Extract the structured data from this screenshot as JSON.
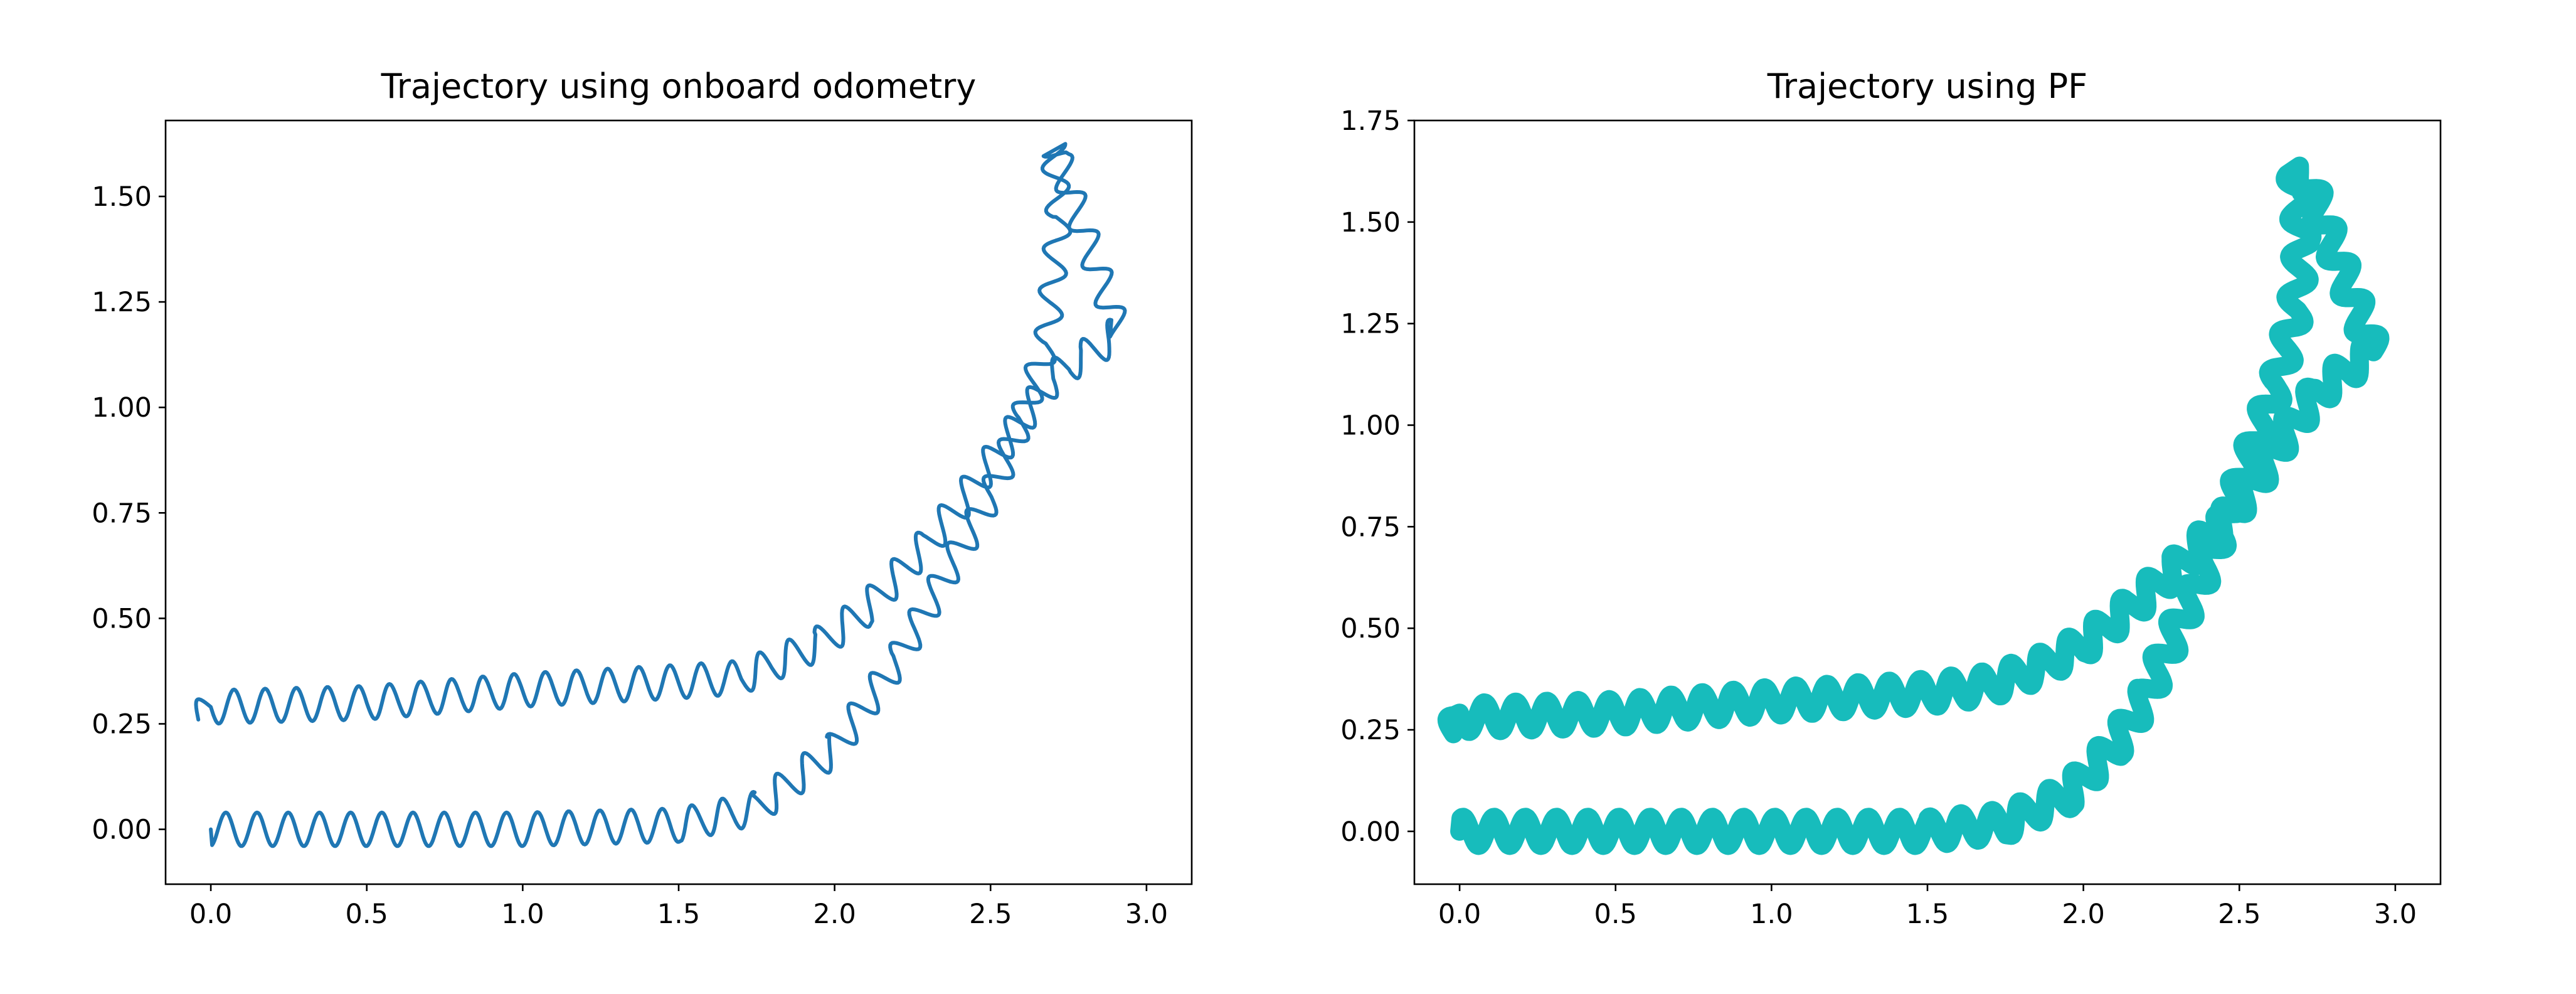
{
  "chart_data": [
    {
      "type": "line",
      "title": "Trajectory using onboard odometry",
      "xlabel": "",
      "ylabel": "",
      "xlim": [
        -0.145,
        3.145
      ],
      "ylim": [
        -0.13,
        1.68
      ],
      "xticks": [
        "0.0",
        "0.5",
        "1.0",
        "1.5",
        "2.0",
        "2.5",
        "3.0"
      ],
      "yticks": [
        "0.00",
        "0.25",
        "0.50",
        "0.75",
        "1.00",
        "1.25",
        "1.50"
      ],
      "grid": false,
      "legend": "none",
      "series": [
        {
          "color": "#1f77b4",
          "oscillation_amplitude": 0.04,
          "oscillation_wavelength": 0.1,
          "x": [
            -0.04,
            0.0,
            0.5,
            1.0,
            1.5,
            1.7,
            1.8,
            1.95,
            2.1,
            2.2,
            2.3,
            2.4,
            2.5,
            2.6,
            2.7,
            2.75,
            2.8,
            2.88,
            2.91,
            2.72,
            2.7,
            2.72,
            2.7,
            2.68,
            2.6,
            2.5,
            2.4,
            2.2,
            2.0,
            1.75,
            1.5,
            1.0,
            0.5,
            0.0
          ],
          "y": [
            0.26,
            0.29,
            0.3,
            0.33,
            0.35,
            0.36,
            0.39,
            0.44,
            0.52,
            0.6,
            0.68,
            0.77,
            0.87,
            0.97,
            1.07,
            1.1,
            1.12,
            1.16,
            1.18,
            1.59,
            1.62,
            1.45,
            1.3,
            1.15,
            0.97,
            0.79,
            0.66,
            0.4,
            0.19,
            0.05,
            0.01,
            0.0,
            0.0,
            0.0
          ]
        }
      ]
    },
    {
      "type": "line",
      "title": "Trajectory using PF",
      "xlabel": "",
      "ylabel": "",
      "xlim": [
        -0.145,
        3.145
      ],
      "ylim": [
        -0.13,
        1.75
      ],
      "xticks": [
        "0.0",
        "0.5",
        "1.0",
        "1.5",
        "2.0",
        "2.5",
        "3.0"
      ],
      "yticks": [
        "0.00",
        "0.25",
        "0.50",
        "0.75",
        "1.00",
        "1.25",
        "1.50",
        "1.75"
      ],
      "grid": false,
      "legend": "none",
      "series": [
        {
          "color": "#17bcbc",
          "oscillation_amplitude": 0.035,
          "oscillation_wavelength": 0.1,
          "x": [
            -0.02,
            0.0,
            0.5,
            1.0,
            1.5,
            1.7,
            1.85,
            2.0,
            2.15,
            2.3,
            2.45,
            2.55,
            2.65,
            2.75,
            2.85,
            2.93,
            2.72,
            2.68,
            2.7,
            2.68,
            2.62,
            2.5,
            2.4,
            2.3,
            2.2,
            2.1,
            1.95,
            1.75,
            1.5,
            1.0,
            0.5,
            0.0
          ],
          "y": [
            0.24,
            0.28,
            0.29,
            0.32,
            0.34,
            0.36,
            0.4,
            0.46,
            0.55,
            0.65,
            0.76,
            0.86,
            0.98,
            1.08,
            1.14,
            1.18,
            1.6,
            1.62,
            1.45,
            1.28,
            1.1,
            0.85,
            0.66,
            0.5,
            0.33,
            0.21,
            0.09,
            0.02,
            0.0,
            0.0,
            0.0,
            0.0
          ]
        }
      ]
    }
  ]
}
